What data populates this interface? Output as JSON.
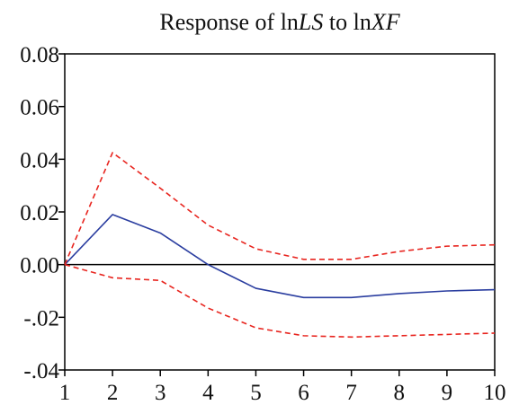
{
  "chart_data": {
    "type": "line",
    "title": {
      "prefix": "Response of ln",
      "var1": "LS",
      "mid": " to ln",
      "var2": "XF"
    },
    "xlabel": "",
    "ylabel": "",
    "x": [
      1,
      2,
      3,
      4,
      5,
      6,
      7,
      8,
      9,
      10
    ],
    "x_tick_labels": [
      "1",
      "2",
      "3",
      "4",
      "5",
      "6",
      "7",
      "8",
      "9",
      "10"
    ],
    "xlim": [
      1,
      10
    ],
    "ylim": [
      -0.04,
      0.08
    ],
    "y_ticks": [
      -0.04,
      -0.02,
      0.0,
      0.02,
      0.04,
      0.06,
      0.08
    ],
    "y_tick_labels": [
      "-.04",
      "-.02",
      "0.00",
      "0.02",
      "0.04",
      "0.06",
      "0.08"
    ],
    "grid": false,
    "zero_line": true,
    "series": [
      {
        "role": "response",
        "color": "#2b3ea0",
        "dashed": false,
        "values": [
          0.0,
          0.019,
          0.012,
          0.0,
          -0.009,
          -0.0125,
          -0.0125,
          -0.011,
          -0.01,
          -0.0095
        ]
      },
      {
        "role": "upper-band",
        "color": "#e8251f",
        "dashed": true,
        "values": [
          0.0,
          0.0425,
          0.029,
          0.015,
          0.006,
          0.002,
          0.002,
          0.005,
          0.007,
          0.0075
        ]
      },
      {
        "role": "lower-band",
        "color": "#e8251f",
        "dashed": true,
        "values": [
          0.0,
          -0.005,
          -0.006,
          -0.0165,
          -0.024,
          -0.027,
          -0.0275,
          -0.027,
          -0.0265,
          -0.026
        ]
      }
    ]
  }
}
